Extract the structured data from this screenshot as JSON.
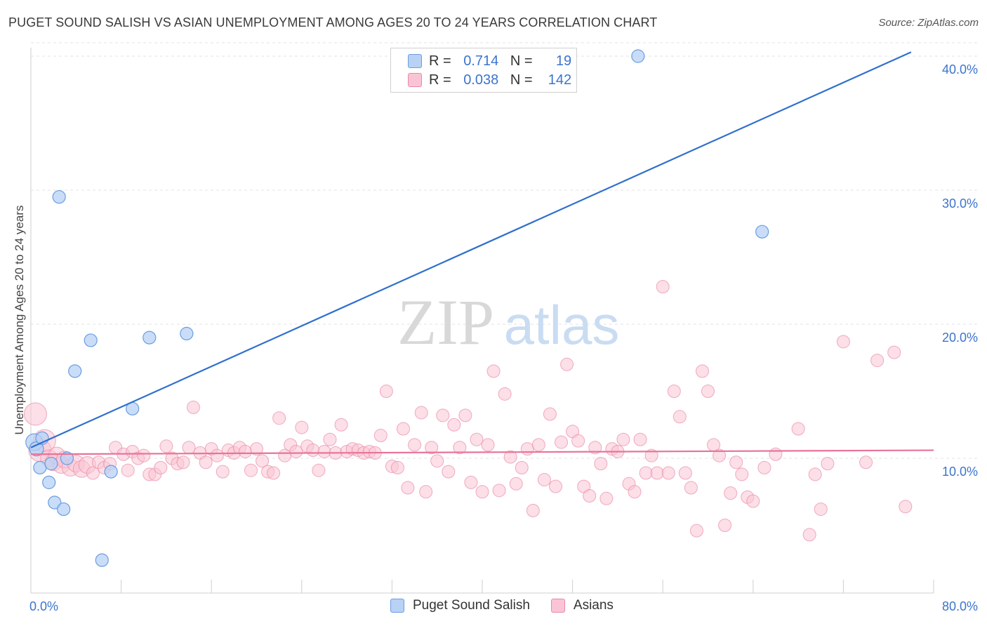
{
  "header": {
    "title": "PUGET SOUND SALISH VS ASIAN UNEMPLOYMENT AMONG AGES 20 TO 24 YEARS CORRELATION CHART",
    "source": "Source: ZipAtlas.com"
  },
  "watermark": {
    "zip": "ZIP",
    "atlas": "atlas"
  },
  "legend_top": {
    "row1": {
      "r_label": "R =",
      "r_value": "0.714",
      "n_label": "N =",
      "n_value": "19"
    },
    "row2": {
      "r_label": "R =",
      "r_value": "0.038",
      "n_label": "N =",
      "n_value": "142"
    }
  },
  "legend_bottom": {
    "series1": "Puget Sound Salish",
    "series2": "Asians"
  },
  "colors": {
    "blue_fill": "#b8d1f5",
    "blue_stroke": "#6a9de0",
    "blue_line": "#2f6fce",
    "pink_fill": "#fac4d4",
    "pink_stroke": "#e98aa7",
    "pink_line": "#e8739a",
    "tick_text": "#3b74cf"
  },
  "chart_data": {
    "type": "scatter",
    "ylabel": "Unemployment Among Ages 20 to 24 years",
    "xlim": [
      0,
      80
    ],
    "ylim": [
      0,
      42
    ],
    "x_tick_labels": [
      {
        "x": 0,
        "label": "0.0%"
      },
      {
        "x": 80,
        "label": "80.0%"
      }
    ],
    "y_tick_labels": [
      {
        "y": 10,
        "label": "10.0%"
      },
      {
        "y": 20,
        "label": "20.0%"
      },
      {
        "y": 30,
        "label": "30.0%"
      },
      {
        "y": 40,
        "label": "40.0%"
      }
    ],
    "grid": true,
    "series": [
      {
        "name": "Puget Sound Salish",
        "R": 0.714,
        "N": 19,
        "trend": {
          "x": [
            0,
            78
          ],
          "y": [
            10.8,
            40.3
          ]
        },
        "points": [
          [
            0.3,
            11.2
          ],
          [
            0.5,
            10.7
          ],
          [
            0.8,
            9.3
          ],
          [
            1.0,
            11.5
          ],
          [
            1.6,
            8.2
          ],
          [
            1.8,
            9.6
          ],
          [
            2.1,
            6.7
          ],
          [
            2.5,
            29.5
          ],
          [
            2.9,
            6.2
          ],
          [
            3.2,
            10.0
          ],
          [
            3.9,
            16.5
          ],
          [
            5.3,
            18.8
          ],
          [
            6.3,
            2.4
          ],
          [
            7.1,
            9.0
          ],
          [
            9.0,
            13.7
          ],
          [
            10.5,
            19.0
          ],
          [
            13.8,
            19.3
          ],
          [
            53.8,
            40.0
          ],
          [
            64.8,
            26.9
          ]
        ],
        "sizes": [
          12,
          10,
          9,
          9,
          9,
          9,
          9,
          9,
          9,
          9,
          9,
          9,
          9,
          9,
          9,
          9,
          9,
          9,
          9
        ]
      },
      {
        "name": "Asians",
        "R": 0.038,
        "N": 142,
        "trend": {
          "x": [
            0,
            80
          ],
          "y": [
            10.3,
            10.6
          ]
        },
        "points": [
          [
            0.4,
            13.3
          ],
          [
            0.8,
            10.6
          ],
          [
            1.2,
            11.3
          ],
          [
            1.6,
            10.0
          ],
          [
            2.0,
            9.7
          ],
          [
            2.3,
            10.2
          ],
          [
            2.7,
            9.5
          ],
          [
            3.0,
            9.9
          ],
          [
            3.5,
            9.3
          ],
          [
            4.0,
            9.6
          ],
          [
            4.5,
            9.2
          ],
          [
            5.0,
            9.5
          ],
          [
            5.5,
            8.9
          ],
          [
            6.0,
            9.7
          ],
          [
            6.5,
            9.3
          ],
          [
            7.0,
            9.6
          ],
          [
            7.5,
            10.8
          ],
          [
            8.2,
            10.3
          ],
          [
            8.6,
            9.1
          ],
          [
            9.0,
            10.5
          ],
          [
            9.5,
            10.0
          ],
          [
            10.0,
            10.2
          ],
          [
            10.5,
            8.8
          ],
          [
            11.0,
            8.8
          ],
          [
            11.5,
            9.3
          ],
          [
            12.0,
            10.9
          ],
          [
            12.5,
            10.0
          ],
          [
            13.0,
            9.6
          ],
          [
            13.5,
            9.7
          ],
          [
            14.0,
            10.8
          ],
          [
            14.4,
            13.8
          ],
          [
            15.0,
            10.4
          ],
          [
            15.5,
            9.7
          ],
          [
            16.0,
            10.7
          ],
          [
            16.5,
            10.2
          ],
          [
            17.0,
            9.0
          ],
          [
            17.5,
            10.6
          ],
          [
            18.0,
            10.4
          ],
          [
            18.5,
            10.8
          ],
          [
            19.0,
            10.5
          ],
          [
            19.5,
            9.1
          ],
          [
            20.0,
            10.7
          ],
          [
            20.5,
            9.8
          ],
          [
            21.0,
            9.0
          ],
          [
            21.5,
            8.9
          ],
          [
            22.0,
            13.0
          ],
          [
            22.5,
            10.2
          ],
          [
            23.0,
            11.0
          ],
          [
            23.5,
            10.5
          ],
          [
            24.0,
            12.3
          ],
          [
            24.5,
            10.9
          ],
          [
            25.0,
            10.6
          ],
          [
            25.5,
            9.1
          ],
          [
            26.0,
            10.5
          ],
          [
            26.5,
            11.4
          ],
          [
            27.0,
            10.4
          ],
          [
            27.5,
            12.5
          ],
          [
            28.0,
            10.5
          ],
          [
            28.5,
            10.7
          ],
          [
            29.0,
            10.6
          ],
          [
            29.5,
            10.4
          ],
          [
            30.0,
            10.5
          ],
          [
            30.5,
            10.4
          ],
          [
            31.0,
            11.7
          ],
          [
            31.5,
            15.0
          ],
          [
            32.0,
            9.4
          ],
          [
            32.5,
            9.3
          ],
          [
            33.0,
            12.2
          ],
          [
            33.4,
            7.8
          ],
          [
            34.0,
            11.0
          ],
          [
            34.6,
            13.4
          ],
          [
            35.0,
            7.5
          ],
          [
            35.5,
            10.8
          ],
          [
            36.0,
            9.8
          ],
          [
            36.5,
            13.2
          ],
          [
            37.0,
            9.0
          ],
          [
            37.5,
            12.5
          ],
          [
            38.0,
            10.8
          ],
          [
            38.5,
            13.2
          ],
          [
            39.0,
            8.2
          ],
          [
            39.5,
            11.4
          ],
          [
            40.0,
            7.5
          ],
          [
            40.5,
            11.0
          ],
          [
            41.0,
            16.5
          ],
          [
            41.5,
            7.6
          ],
          [
            42.0,
            14.8
          ],
          [
            42.5,
            10.1
          ],
          [
            43.0,
            8.1
          ],
          [
            43.5,
            9.3
          ],
          [
            44.0,
            10.7
          ],
          [
            44.5,
            6.1
          ],
          [
            45.0,
            11.0
          ],
          [
            45.5,
            8.4
          ],
          [
            46.0,
            13.3
          ],
          [
            46.5,
            7.9
          ],
          [
            47.0,
            11.2
          ],
          [
            47.5,
            17.0
          ],
          [
            48.0,
            12.0
          ],
          [
            48.5,
            11.3
          ],
          [
            49.0,
            7.9
          ],
          [
            49.5,
            7.2
          ],
          [
            50.0,
            10.8
          ],
          [
            50.5,
            9.6
          ],
          [
            51.0,
            7.0
          ],
          [
            51.5,
            10.7
          ],
          [
            52.0,
            10.5
          ],
          [
            52.5,
            11.4
          ],
          [
            53.0,
            8.1
          ],
          [
            53.5,
            7.5
          ],
          [
            54.0,
            11.4
          ],
          [
            54.5,
            8.9
          ],
          [
            55.0,
            10.2
          ],
          [
            55.5,
            8.9
          ],
          [
            56.0,
            22.8
          ],
          [
            56.5,
            8.9
          ],
          [
            57.0,
            15.0
          ],
          [
            57.5,
            13.1
          ],
          [
            58.0,
            8.9
          ],
          [
            58.5,
            7.8
          ],
          [
            59.0,
            4.6
          ],
          [
            59.5,
            16.5
          ],
          [
            60.0,
            15.0
          ],
          [
            60.5,
            11.0
          ],
          [
            61.0,
            10.2
          ],
          [
            61.5,
            5.0
          ],
          [
            62.0,
            7.4
          ],
          [
            62.5,
            9.7
          ],
          [
            63.0,
            8.8
          ],
          [
            63.5,
            7.1
          ],
          [
            64.0,
            6.8
          ],
          [
            65.0,
            9.3
          ],
          [
            66.0,
            10.3
          ],
          [
            68.0,
            12.2
          ],
          [
            69.0,
            4.3
          ],
          [
            69.5,
            8.8
          ],
          [
            70.0,
            6.2
          ],
          [
            70.6,
            9.6
          ],
          [
            72.0,
            18.7
          ],
          [
            74.0,
            9.7
          ],
          [
            75.0,
            17.3
          ],
          [
            76.5,
            17.9
          ],
          [
            77.5,
            6.4
          ]
        ]
      }
    ]
  }
}
